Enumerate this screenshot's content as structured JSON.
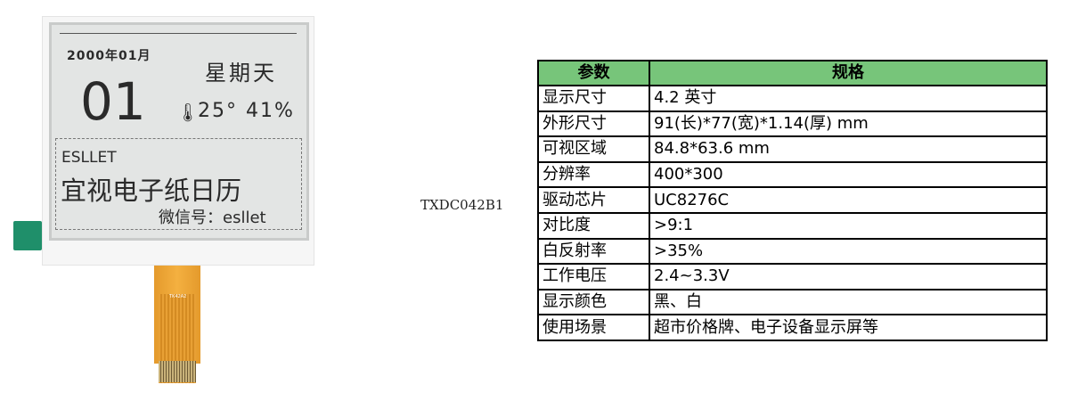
{
  "product_image": {
    "year_month": "2000年01月",
    "weekday": "星期天",
    "day": "01",
    "thermometer_icon": "thermometer-icon",
    "temp_humidity": "25° 41%",
    "brand": "ESLLET",
    "title": "宜视电子纸日历",
    "wechat": "微信号：esllet",
    "fpc_label": "TK42A2"
  },
  "model": "TXDC042B1",
  "spec_table": {
    "headers": [
      "参数",
      "规格"
    ],
    "header_color": "#77c57a",
    "rows": [
      [
        "显示尺寸",
        "4.2 英寸"
      ],
      [
        "外形尺寸",
        "91(长)*77(宽)*1.14(厚) mm"
      ],
      [
        "可视区域",
        "84.8*63.6 mm"
      ],
      [
        "分辨率",
        "400*300"
      ],
      [
        "驱动芯片",
        "UC8276C"
      ],
      [
        "对比度",
        ">9:1"
      ],
      [
        "白反射率",
        ">35%"
      ],
      [
        "工作电压",
        "2.4~3.3V"
      ],
      [
        "显示颜色",
        "黑、白"
      ],
      [
        "使用场景",
        "超市价格牌、电子设备显示屏等"
      ]
    ]
  }
}
